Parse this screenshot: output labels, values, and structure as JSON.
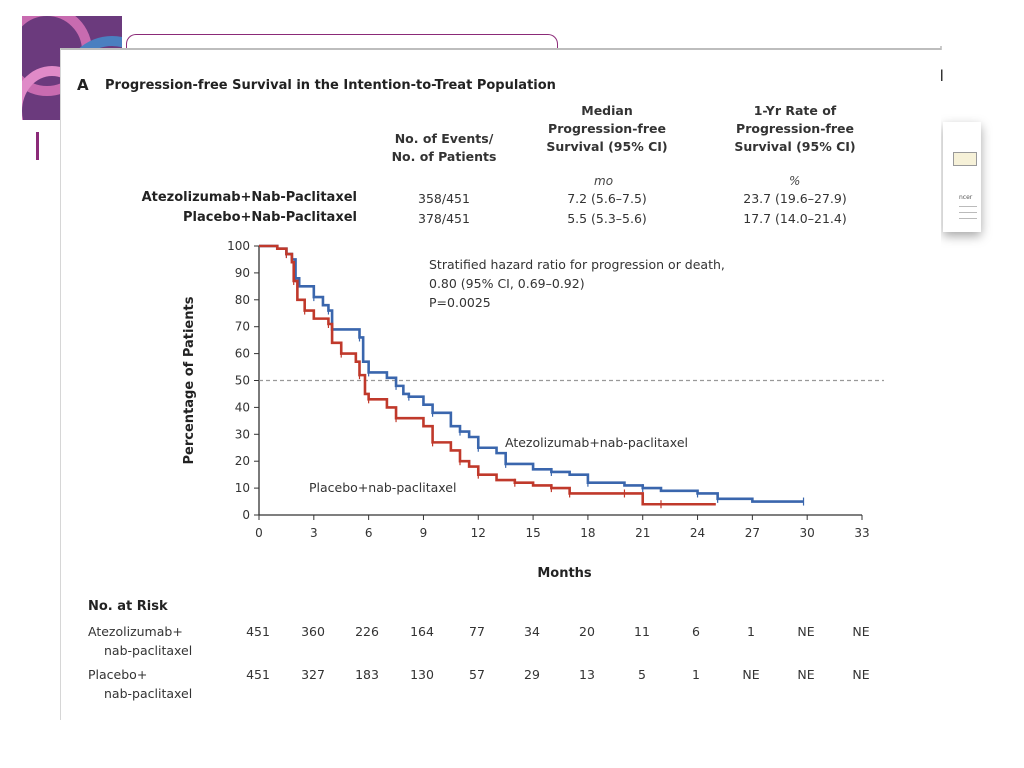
{
  "figure": {
    "panel_letter": "A",
    "panel_title": "Progression-free Survival in the Intention-to-Treat Population",
    "second_panel_letter": "I",
    "thumbnail_text": "ncer"
  },
  "summary_table": {
    "headers": [
      [
        "No. of Events/",
        "No. of Patients"
      ],
      [
        "Median",
        "Progression-free",
        "Survival (95% CI)"
      ],
      [
        "1-Yr Rate of",
        "Progression-free",
        "Survival (95% CI)"
      ]
    ],
    "units": [
      "mo",
      "%"
    ],
    "rows": [
      {
        "arm": "Atezolizumab+Nab-Paclitaxel",
        "events": "358/451",
        "median": "7.2 (5.6–7.5)",
        "rate": "23.7 (19.6–27.9)"
      },
      {
        "arm": "Placebo+Nab-Paclitaxel",
        "events": "378/451",
        "median": "5.5 (5.3–5.6)",
        "rate": "17.7 (14.0–21.4)"
      }
    ]
  },
  "chart_data": {
    "type": "line",
    "xlabel": "Months",
    "ylabel": "Percentage of Patients",
    "xlim": [
      0,
      33
    ],
    "ylim": [
      0,
      100
    ],
    "xticks": [
      0,
      3,
      6,
      9,
      12,
      15,
      18,
      21,
      24,
      27,
      30,
      33
    ],
    "yticks": [
      0,
      10,
      20,
      30,
      40,
      50,
      60,
      70,
      80,
      90,
      100
    ],
    "reference_line_y": 50,
    "annotation": [
      "Stratified hazard ratio for progression or death,",
      "0.80 (95% CI, 0.69–0.92)",
      "P=0.0025"
    ],
    "series": [
      {
        "name": "Atezolizumab+nab-paclitaxel",
        "color": "#3a66ad",
        "x": [
          0,
          1,
          1.5,
          1.8,
          2.0,
          2.2,
          3.0,
          3.5,
          3.8,
          4.0,
          5.5,
          5.7,
          6.0,
          7.0,
          7.5,
          7.9,
          8.2,
          9.0,
          9.5,
          10.5,
          11.0,
          11.5,
          12.0,
          13.0,
          13.5,
          15.0,
          16.0,
          17.0,
          18.0,
          20.0,
          21.0,
          22.0,
          24.0,
          25.0,
          25.1,
          27.0,
          29.8
        ],
        "y": [
          100,
          99,
          97,
          95,
          88,
          85,
          81,
          78,
          76,
          69,
          66,
          57,
          53,
          51,
          48,
          45,
          44,
          41,
          38,
          33,
          31,
          29,
          25,
          23,
          19,
          17,
          16,
          15,
          12,
          11,
          10,
          9,
          8,
          8,
          6,
          5,
          5
        ]
      },
      {
        "name": "Placebo+nab-paclitaxel",
        "color": "#c0392b",
        "x": [
          0,
          1,
          1.5,
          1.8,
          1.9,
          2.1,
          2.5,
          3.0,
          3.8,
          4.0,
          4.5,
          5.3,
          5.5,
          5.8,
          6.0,
          7.0,
          7.5,
          9.0,
          9.5,
          10.5,
          11.0,
          11.5,
          12.0,
          13.0,
          14.0,
          15.0,
          16.0,
          16.5,
          17.0,
          18.0,
          20.0,
          21.0,
          22.0,
          25.0
        ],
        "y": [
          100,
          99,
          97,
          94,
          87,
          80,
          76,
          73,
          71,
          64,
          60,
          57,
          52,
          45,
          43,
          40,
          36,
          33,
          27,
          24,
          20,
          18,
          15,
          13,
          12,
          11,
          10,
          10,
          8,
          8,
          8,
          4,
          4,
          4
        ]
      }
    ],
    "labels": {
      "atezo": "Atezolizumab+nab-paclitaxel",
      "placebo": "Placebo+nab-paclitaxel"
    }
  },
  "risk_table": {
    "title": "No. at Risk",
    "rows": [
      {
        "label": [
          "Atezolizumab+",
          "nab-paclitaxel"
        ],
        "values": [
          "451",
          "360",
          "226",
          "164",
          "77",
          "34",
          "20",
          "11",
          "6",
          "1",
          "NE",
          "NE"
        ]
      },
      {
        "label": [
          "Placebo+",
          "nab-paclitaxel"
        ],
        "values": [
          "451",
          "327",
          "183",
          "130",
          "57",
          "29",
          "13",
          "5",
          "1",
          "NE",
          "NE",
          "NE"
        ]
      }
    ]
  }
}
